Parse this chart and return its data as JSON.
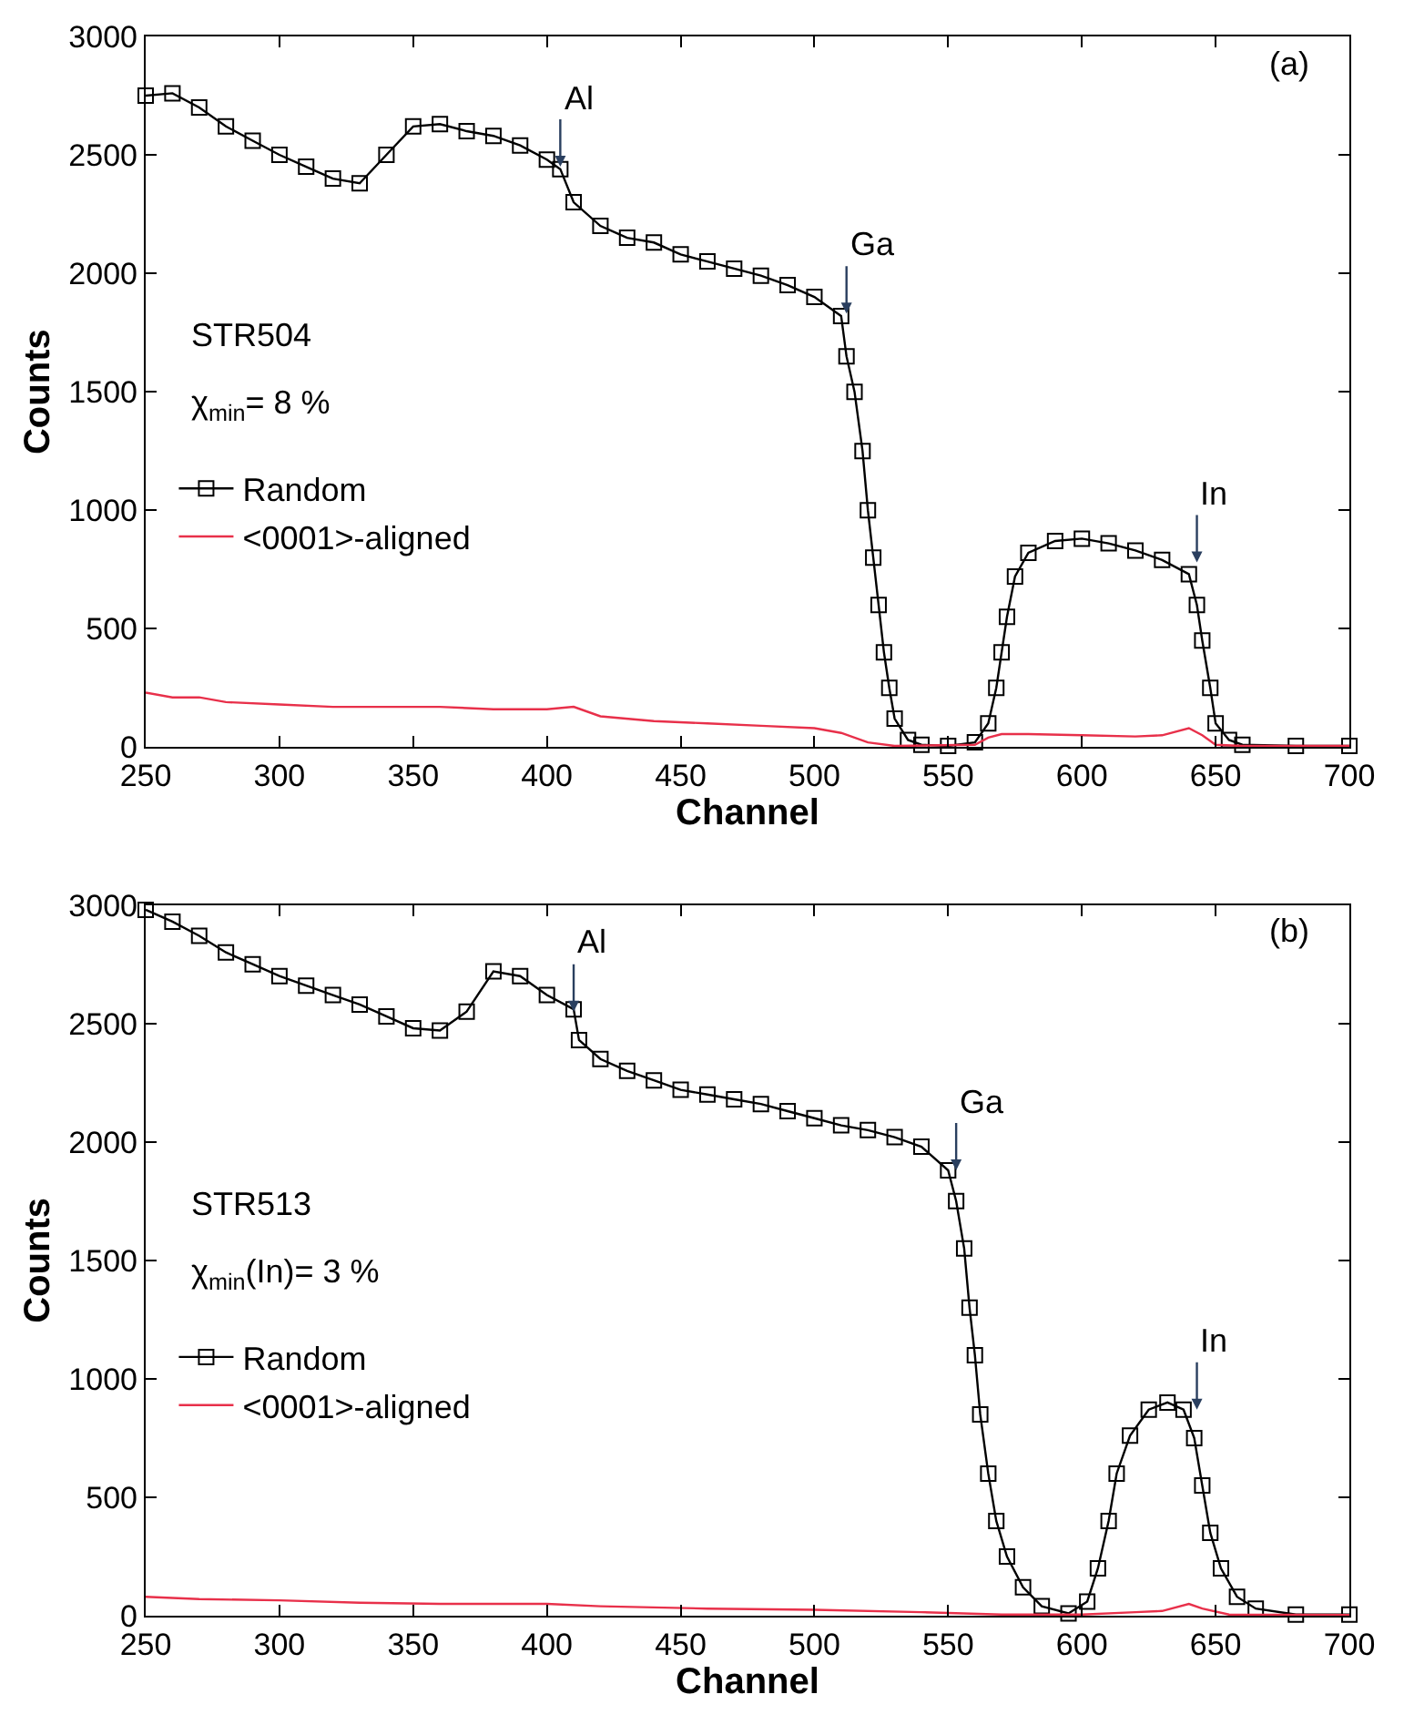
{
  "chart_data": [
    {
      "type": "line",
      "xlabel": "Channel",
      "ylabel": "Counts",
      "xlim": [
        250,
        700
      ],
      "ylim": [
        0,
        3000
      ],
      "xticks": [
        250,
        300,
        350,
        400,
        450,
        500,
        550,
        600,
        650,
        700
      ],
      "yticks": [
        0,
        500,
        1000,
        1500,
        2000,
        2500,
        3000
      ],
      "grid": false,
      "legend": "left",
      "annotations": [
        "(a)",
        "STR504",
        "χ$_{min}$= 8 %",
        {
          "text": "Al",
          "x": 405,
          "y": 2450
        },
        {
          "text": "Ga",
          "x": 512,
          "y": 1830
        },
        {
          "text": "In",
          "x": 643,
          "y": 780
        }
      ],
      "series": [
        {
          "name": "Random",
          "color": "#000000",
          "marker": "square",
          "x": [
            250,
            260,
            270,
            280,
            290,
            300,
            310,
            320,
            330,
            340,
            350,
            360,
            370,
            380,
            390,
            400,
            405,
            410,
            420,
            430,
            440,
            450,
            460,
            470,
            480,
            490,
            500,
            510,
            512,
            515,
            518,
            520,
            522,
            524,
            526,
            528,
            530,
            535,
            540,
            550,
            560,
            565,
            568,
            570,
            572,
            575,
            580,
            590,
            600,
            610,
            620,
            630,
            640,
            643,
            645,
            648,
            650,
            655,
            660,
            680,
            700
          ],
          "values": [
            2750,
            2760,
            2700,
            2620,
            2560,
            2500,
            2450,
            2400,
            2380,
            2500,
            2620,
            2630,
            2600,
            2580,
            2540,
            2480,
            2440,
            2300,
            2200,
            2150,
            2130,
            2080,
            2050,
            2020,
            1990,
            1950,
            1900,
            1820,
            1650,
            1500,
            1250,
            1000,
            800,
            600,
            400,
            250,
            120,
            30,
            10,
            5,
            20,
            100,
            250,
            400,
            550,
            720,
            820,
            870,
            880,
            860,
            830,
            790,
            730,
            600,
            450,
            250,
            100,
            30,
            10,
            5,
            5
          ]
        },
        {
          "name": "<0001>-aligned",
          "color": "#e8304a",
          "marker": "none",
          "x": [
            250,
            260,
            270,
            280,
            300,
            320,
            340,
            360,
            380,
            400,
            410,
            420,
            440,
            460,
            480,
            500,
            510,
            520,
            530,
            560,
            565,
            570,
            580,
            600,
            620,
            630,
            640,
            645,
            650,
            660,
            700
          ],
          "values": [
            230,
            210,
            210,
            190,
            180,
            170,
            170,
            170,
            160,
            160,
            170,
            130,
            110,
            100,
            90,
            80,
            60,
            20,
            5,
            10,
            40,
            55,
            55,
            50,
            45,
            50,
            80,
            50,
            10,
            5,
            5
          ]
        }
      ]
    },
    {
      "type": "line",
      "xlabel": "Channel",
      "ylabel": "Counts",
      "xlim": [
        250,
        700
      ],
      "ylim": [
        0,
        3000
      ],
      "xticks": [
        250,
        300,
        350,
        400,
        450,
        500,
        550,
        600,
        650,
        700
      ],
      "yticks": [
        0,
        500,
        1000,
        1500,
        2000,
        2500,
        3000
      ],
      "grid": false,
      "legend": "left",
      "annotations": [
        "(b)",
        "STR513",
        "χ$_{min}$(In)= 3 %",
        {
          "text": "Al",
          "x": 410,
          "y": 2550
        },
        {
          "text": "Ga",
          "x": 553,
          "y": 1880
        },
        {
          "text": "In",
          "x": 643,
          "y": 870
        }
      ],
      "series": [
        {
          "name": "Random",
          "color": "#000000",
          "marker": "square",
          "x": [
            250,
            260,
            270,
            280,
            290,
            300,
            310,
            320,
            330,
            340,
            350,
            360,
            370,
            380,
            390,
            400,
            410,
            412,
            420,
            430,
            440,
            450,
            460,
            470,
            480,
            490,
            500,
            510,
            520,
            530,
            540,
            550,
            553,
            556,
            558,
            560,
            562,
            565,
            568,
            572,
            578,
            585,
            595,
            602,
            606,
            610,
            613,
            618,
            625,
            632,
            638,
            642,
            645,
            648,
            652,
            658,
            665,
            680,
            700
          ],
          "values": [
            2980,
            2930,
            2870,
            2800,
            2750,
            2700,
            2660,
            2620,
            2580,
            2530,
            2480,
            2470,
            2550,
            2720,
            2700,
            2620,
            2560,
            2430,
            2350,
            2300,
            2260,
            2220,
            2200,
            2180,
            2160,
            2130,
            2100,
            2070,
            2050,
            2020,
            1980,
            1880,
            1750,
            1550,
            1300,
            1100,
            850,
            600,
            400,
            250,
            120,
            40,
            10,
            60,
            200,
            400,
            600,
            760,
            870,
            900,
            870,
            750,
            550,
            350,
            200,
            80,
            30,
            5,
            5
          ]
        },
        {
          "name": "<0001>-aligned",
          "color": "#e8304a",
          "marker": "none",
          "x": [
            250,
            270,
            300,
            330,
            360,
            400,
            420,
            460,
            500,
            540,
            570,
            600,
            620,
            630,
            640,
            645,
            655,
            700
          ],
          "values": [
            80,
            70,
            65,
            55,
            50,
            50,
            40,
            30,
            25,
            15,
            5,
            5,
            15,
            20,
            50,
            30,
            5,
            3
          ]
        }
      ]
    }
  ]
}
